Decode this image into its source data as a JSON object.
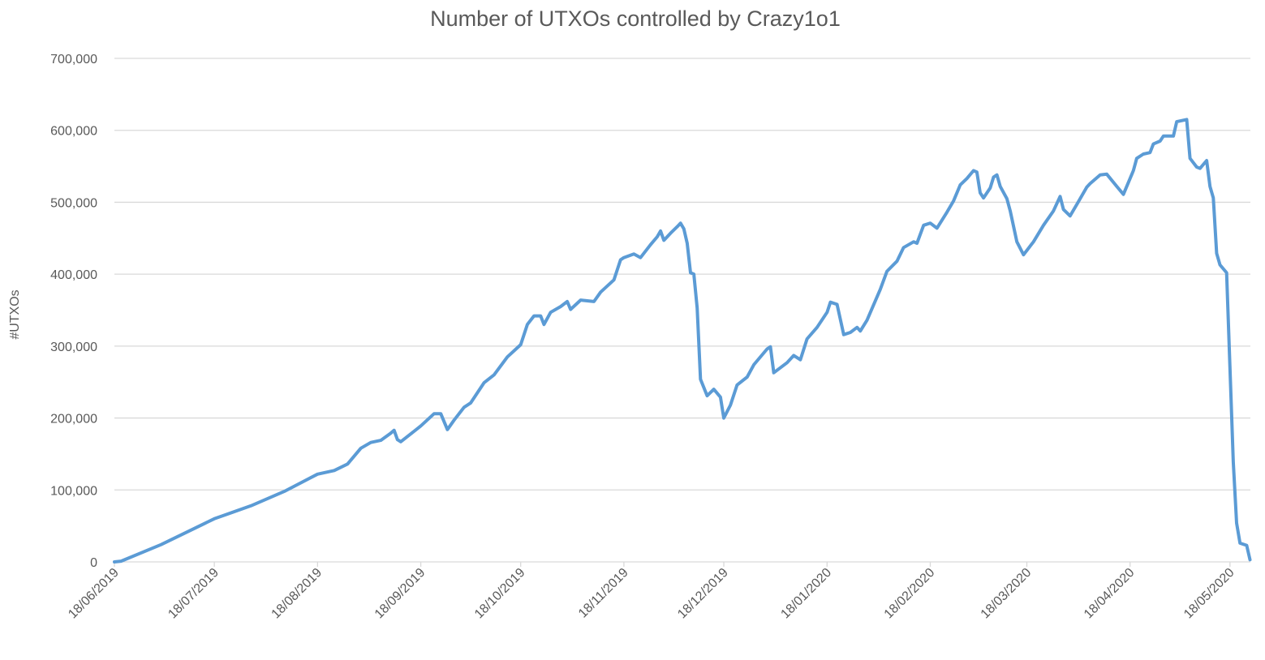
{
  "chart_data": {
    "type": "line",
    "title": "Number of UTXOs controlled by Crazy1o1",
    "xlabel": "",
    "ylabel": "#UTXOs",
    "ylim": [
      0,
      700000
    ],
    "yticks": [
      0,
      100000,
      200000,
      300000,
      400000,
      500000,
      600000,
      700000
    ],
    "ytick_labels": [
      "0",
      "100,000",
      "200,000",
      "300,000",
      "400,000",
      "500,000",
      "600,000",
      "700,000"
    ],
    "xlim_days": [
      0,
      341
    ],
    "xtick_days": [
      0,
      30,
      61,
      92,
      122,
      153,
      183,
      214,
      245,
      274,
      305,
      335
    ],
    "xtick_labels": [
      "18/06/2019",
      "18/07/2019",
      "18/08/2019",
      "18/09/2019",
      "18/10/2019",
      "18/11/2019",
      "18/12/2019",
      "18/01/2020",
      "18/02/2020",
      "18/03/2020",
      "18/04/2020",
      "18/05/2020"
    ],
    "grid": true,
    "legend": "none",
    "series": [
      {
        "name": "#UTXOs",
        "color": "#5b9bd5",
        "x_days": [
          0,
          2,
          14,
          30,
          41,
          51,
          61,
          66,
          70,
          74,
          77,
          80,
          83,
          84,
          85,
          86,
          89,
          92,
          96,
          98,
          100,
          102,
          105,
          107,
          111,
          114,
          118,
          122,
          124,
          126,
          128,
          129,
          131,
          134,
          136,
          137,
          140,
          144,
          146,
          150,
          152,
          153,
          156,
          158,
          161,
          163,
          164,
          165,
          167,
          169,
          170,
          171,
          172,
          173,
          174,
          175,
          176,
          178,
          180,
          182,
          183,
          185,
          187,
          190,
          192,
          196,
          197,
          198,
          202,
          204,
          206,
          208,
          211,
          214,
          215,
          217,
          219,
          221,
          223,
          224,
          226,
          230,
          232,
          235,
          237,
          240,
          241,
          243,
          245,
          247,
          250,
          252,
          254,
          256,
          258,
          259,
          260,
          261,
          263,
          264,
          265,
          266,
          268,
          269,
          271,
          273,
          276,
          279,
          282,
          284,
          285,
          287,
          289,
          292,
          293,
          296,
          298,
          301,
          303,
          306,
          307,
          309,
          311,
          312,
          314,
          315,
          318,
          319,
          321,
          322,
          323,
          325,
          326,
          328,
          329,
          330,
          331,
          332,
          334,
          336,
          337,
          338,
          340,
          341
        ],
        "values": [
          0,
          1000,
          24000,
          60000,
          78000,
          98000,
          122000,
          127000,
          136000,
          158000,
          166000,
          169000,
          179000,
          183000,
          170000,
          167000,
          178000,
          189000,
          206000,
          206000,
          184000,
          197000,
          215000,
          221000,
          249000,
          260000,
          285000,
          302000,
          330000,
          342000,
          342000,
          330000,
          347000,
          355000,
          362000,
          351000,
          364000,
          362000,
          375000,
          392000,
          420000,
          423000,
          428000,
          423000,
          441000,
          452000,
          460000,
          447000,
          457000,
          466000,
          471000,
          463000,
          443000,
          402000,
          400000,
          353000,
          254000,
          231000,
          240000,
          229000,
          200000,
          218000,
          246000,
          257000,
          274000,
          296000,
          299000,
          263000,
          277000,
          287000,
          281000,
          310000,
          326000,
          347000,
          361000,
          358000,
          316000,
          319000,
          326000,
          321000,
          336000,
          379000,
          404000,
          418000,
          437000,
          445000,
          443000,
          468000,
          471000,
          464000,
          486000,
          502000,
          524000,
          533000,
          544000,
          542000,
          513000,
          506000,
          520000,
          535000,
          538000,
          522000,
          505000,
          488000,
          445000,
          427000,
          445000,
          468000,
          488000,
          508000,
          490000,
          481000,
          497000,
          521000,
          526000,
          538000,
          539000,
          522000,
          511000,
          544000,
          561000,
          567000,
          569000,
          581000,
          585000,
          592000,
          592000,
          612000,
          614000,
          615000,
          561000,
          549000,
          547000,
          558000,
          522000,
          506000,
          429000,
          413000,
          402000,
          139000,
          54000,
          26000,
          23000,
          3000
        ]
      }
    ]
  }
}
